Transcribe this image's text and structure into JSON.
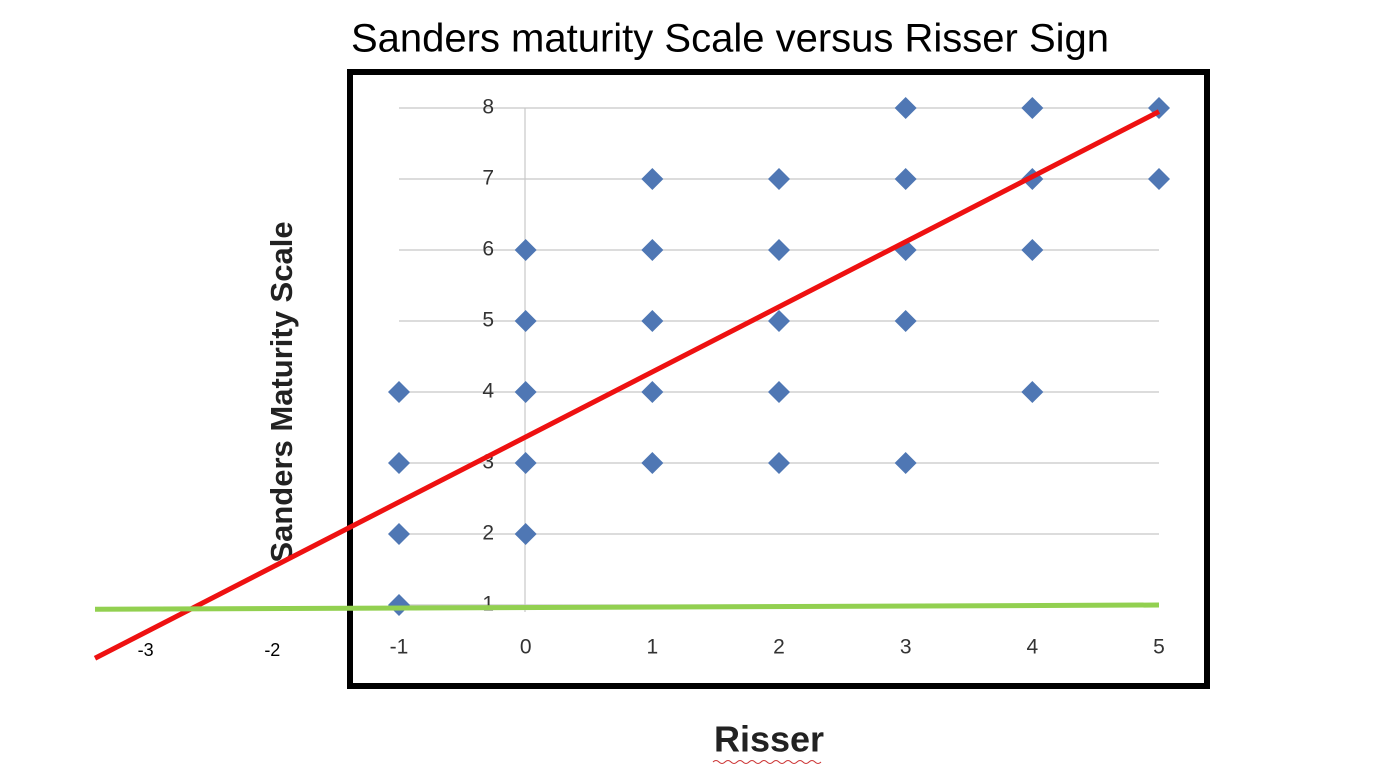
{
  "chart_data": {
    "type": "scatter",
    "title": "Sanders maturity Scale versus Risser Sign",
    "x_label": "Risser",
    "y_label": "Sanders Maturity Scale",
    "xlim": [
      -1,
      5
    ],
    "ylim": [
      1,
      8
    ],
    "xticks": [
      -1,
      0,
      1,
      2,
      3,
      4,
      5
    ],
    "yticks": [
      1,
      2,
      3,
      4,
      5,
      6,
      7,
      8
    ],
    "extra_xticks": [
      -3,
      -2
    ],
    "grid": true,
    "series": [
      {
        "color": "#4f77b4",
        "x": [
          -1,
          -1,
          -1,
          -1,
          0,
          0,
          0,
          0,
          0,
          1,
          1,
          1,
          1,
          1,
          2,
          2,
          2,
          2,
          2,
          3,
          3,
          3,
          3,
          3,
          4,
          4,
          4,
          4,
          5,
          5
        ],
        "values": [
          4,
          3,
          2,
          1,
          6,
          5,
          4,
          3,
          2,
          7,
          6,
          5,
          4,
          3,
          7,
          6,
          5,
          4,
          3,
          8,
          7,
          6,
          5,
          3,
          8,
          7,
          6,
          4,
          8,
          7
        ]
      }
    ],
    "trend_lines": [
      {
        "color": "#ee1111",
        "x": [
          -3.4,
          5
        ],
        "values": [
          0.25,
          7.95
        ]
      },
      {
        "color": "#92d050",
        "x": [
          -3.4,
          5
        ],
        "values": [
          0.94,
          1.0
        ]
      }
    ]
  }
}
